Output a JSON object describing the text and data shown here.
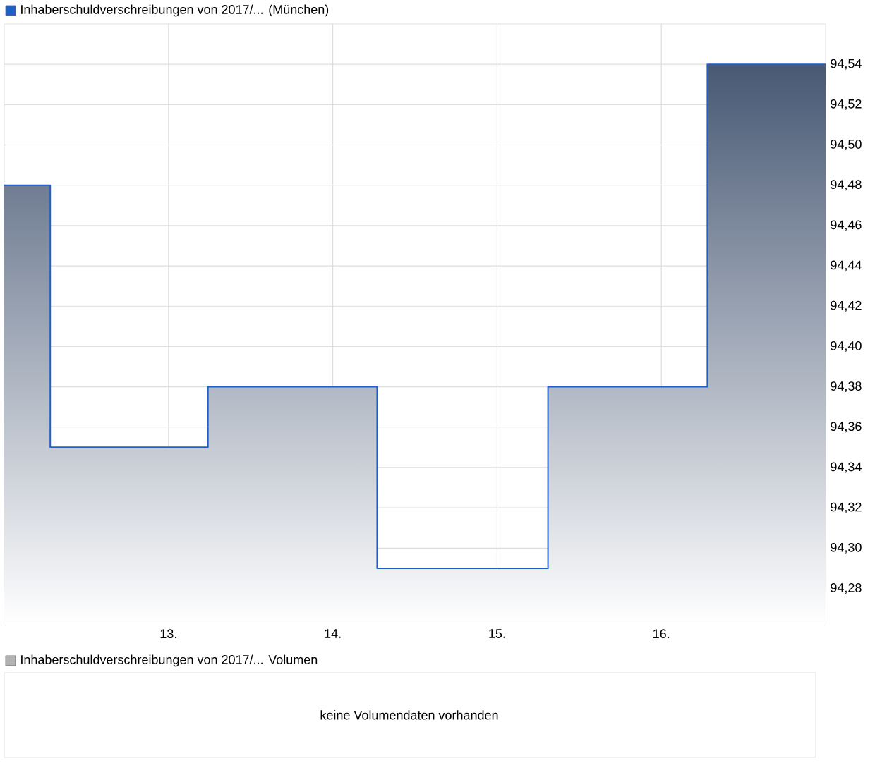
{
  "chart_data": [
    {
      "type": "step",
      "title": "Inhaberschuldverschreibungen von 2017/... (München)",
      "color": "#1f5fc8",
      "x": [
        12,
        12.28,
        13.24,
        14.27,
        15.31,
        16.28,
        17
      ],
      "values": [
        94.48,
        94.35,
        94.38,
        94.29,
        94.38,
        94.54,
        94.54
      ],
      "xlim": [
        12,
        17
      ],
      "ylim": [
        94.262,
        94.56
      ],
      "xticks": [
        {
          "value": 13,
          "label": "13."
        },
        {
          "value": 14,
          "label": "14."
        },
        {
          "value": 15,
          "label": "15."
        },
        {
          "value": 16,
          "label": "16."
        }
      ],
      "yticks": [
        {
          "value": 94.28,
          "label": "94,28"
        },
        {
          "value": 94.3,
          "label": "94,30"
        },
        {
          "value": 94.32,
          "label": "94,32"
        },
        {
          "value": 94.34,
          "label": "94,34"
        },
        {
          "value": 94.36,
          "label": "94,36"
        },
        {
          "value": 94.38,
          "label": "94,38"
        },
        {
          "value": 94.4,
          "label": "94,40"
        },
        {
          "value": 94.42,
          "label": "94,42"
        },
        {
          "value": 94.44,
          "label": "94,44"
        },
        {
          "value": 94.46,
          "label": "94,46"
        },
        {
          "value": 94.48,
          "label": "94,48"
        },
        {
          "value": 94.5,
          "label": "94,50"
        },
        {
          "value": 94.52,
          "label": "94,52"
        },
        {
          "value": 94.54,
          "label": "94,54"
        }
      ],
      "grid": true
    },
    {
      "type": "other",
      "title": "Inhaberschuldverschreibungen von 2017/... Volumen",
      "annotations": [
        "keine Volumendaten vorhanden"
      ]
    }
  ]
}
